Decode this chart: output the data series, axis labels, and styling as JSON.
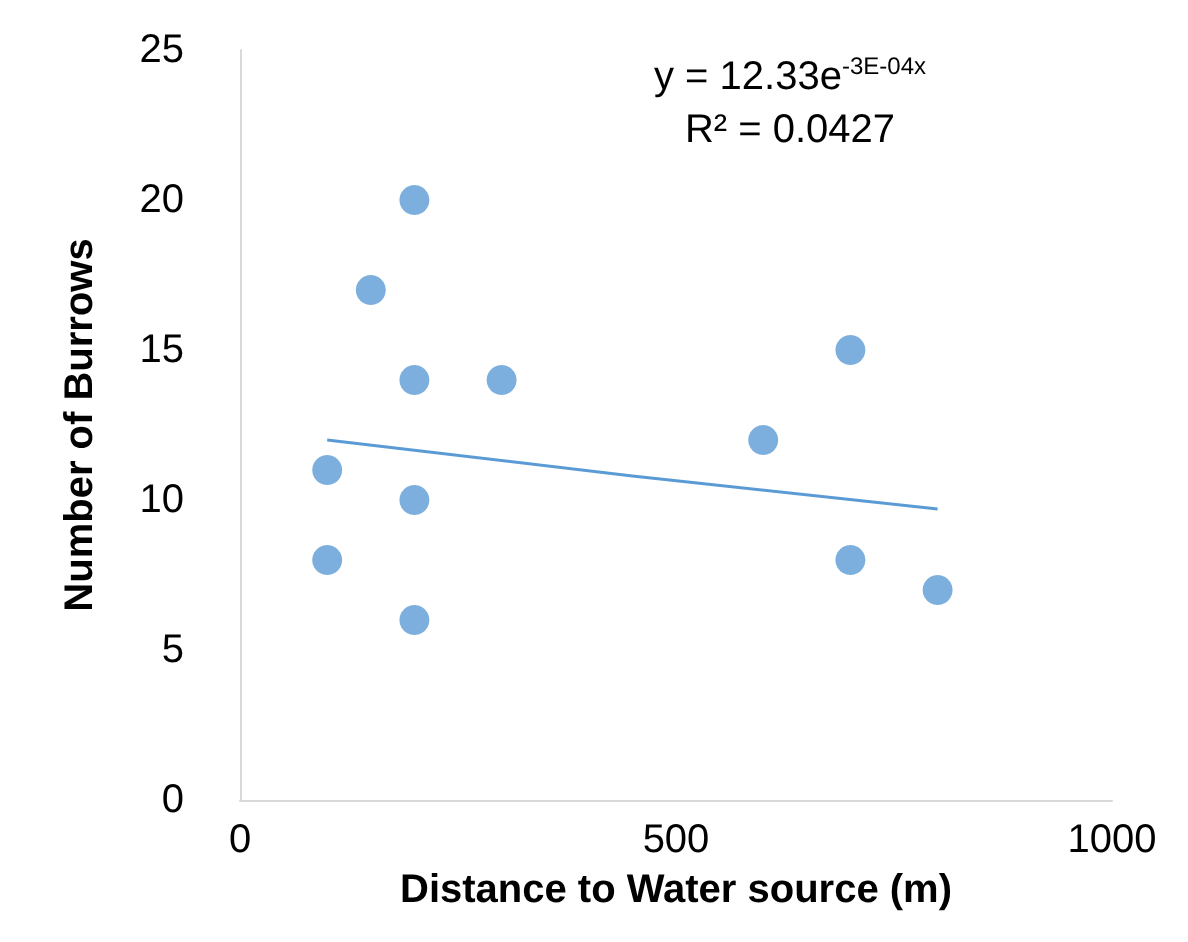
{
  "chart_data": {
    "type": "scatter",
    "xlabel": "Distance to Water source (m)",
    "ylabel": "Number of Burrows",
    "series": [
      {
        "color": "#5b9bd5",
        "x": [
          100,
          100,
          150,
          200,
          200,
          200,
          200,
          300,
          600,
          700,
          700,
          800
        ],
        "values": [
          11,
          8,
          17,
          20,
          14,
          10,
          6,
          14,
          12,
          15,
          8,
          7
        ]
      },
      {
        "type": "line",
        "color": "#5b9bd5",
        "marker": "none",
        "x": [
          100,
          450,
          800
        ],
        "values": [
          12.0,
          10.8,
          9.7
        ]
      }
    ],
    "xlim": [
      0,
      1000
    ],
    "xticks": [
      0,
      500,
      1000
    ],
    "ylim": [
      0,
      25
    ],
    "yticks": [
      0,
      5,
      10,
      15,
      20,
      25
    ],
    "grid": false,
    "marker": "circle",
    "annotations": [
      "y = 12.33e$^{-3E-04x}$",
      "R² = 0.0427"
    ]
  }
}
